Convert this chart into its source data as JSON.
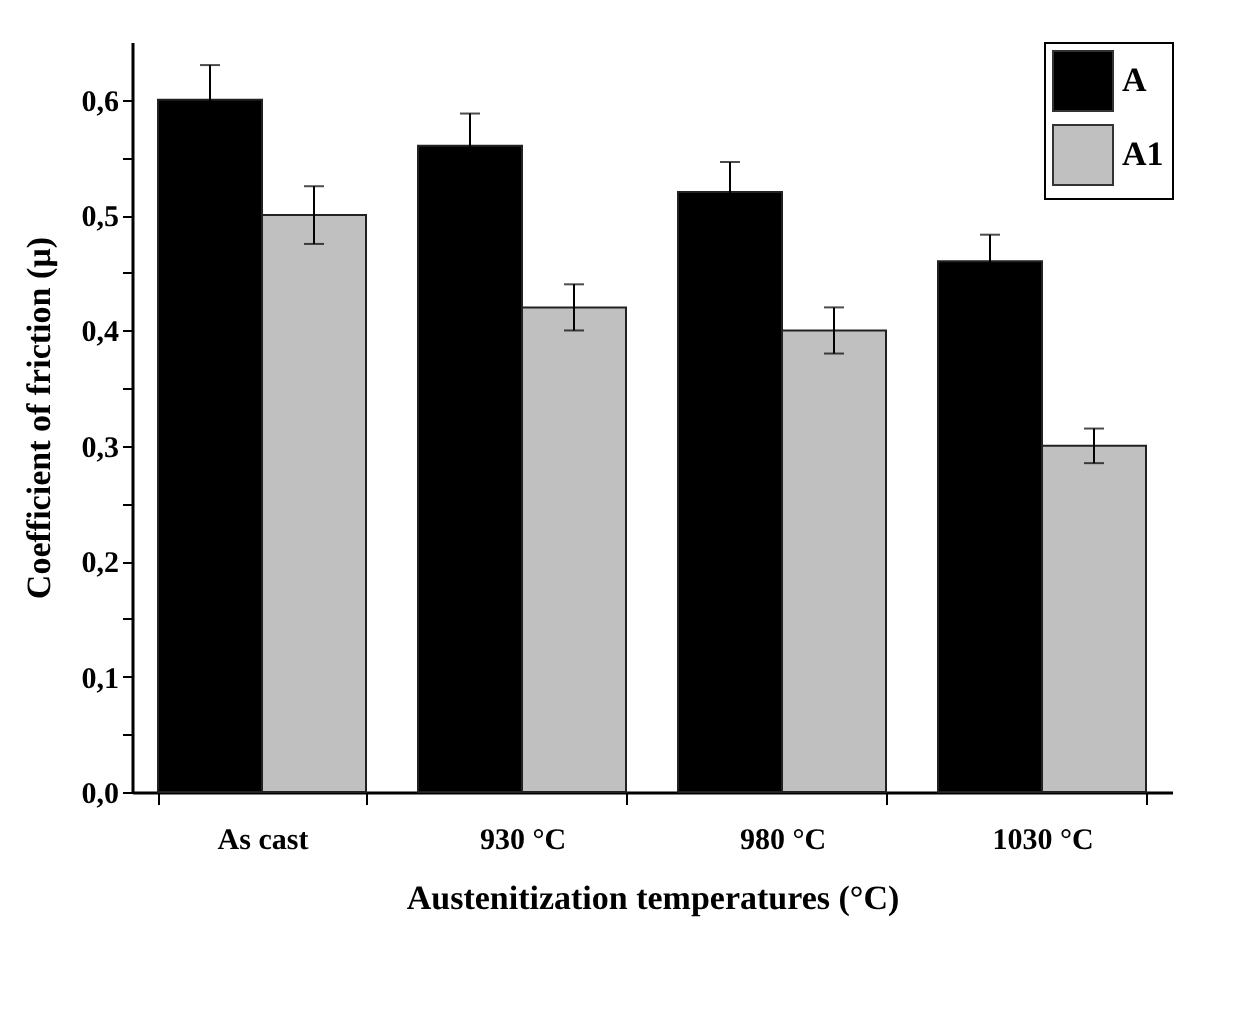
{
  "chart_data": {
    "type": "bar",
    "xlabel": "Austenitization  temperatures (°C)",
    "ylabel": "Coefficient of friction (µ)",
    "categories": [
      "As cast",
      "930 °C",
      "980 °C",
      "1030 °C"
    ],
    "series": [
      {
        "name": "A",
        "color": "#000000",
        "values": [
          0.6,
          0.56,
          0.52,
          0.46
        ],
        "errors": [
          0.03,
          0.028,
          0.026,
          0.023
        ]
      },
      {
        "name": "A1",
        "color": "#c0c0c0",
        "values": [
          0.5,
          0.42,
          0.4,
          0.3
        ],
        "errors": [
          0.025,
          0.02,
          0.02,
          0.015
        ]
      }
    ],
    "ylim": [
      0,
      0.65
    ],
    "yticks": [
      {
        "value": 0,
        "label": "0,0"
      },
      {
        "value": 0.05,
        "label": null
      },
      {
        "value": 0.1,
        "label": "0,1"
      },
      {
        "value": 0.15,
        "label": null
      },
      {
        "value": 0.2,
        "label": "0,2"
      },
      {
        "value": 0.25,
        "label": null
      },
      {
        "value": 0.3,
        "label": "0,3"
      },
      {
        "value": 0.35,
        "label": null
      },
      {
        "value": 0.4,
        "label": "0,4"
      },
      {
        "value": 0.45,
        "label": null
      },
      {
        "value": 0.5,
        "label": "0,5"
      },
      {
        "value": 0.55,
        "label": null
      },
      {
        "value": 0.6,
        "label": "0,6"
      }
    ],
    "grid": false,
    "legend": "top right"
  }
}
